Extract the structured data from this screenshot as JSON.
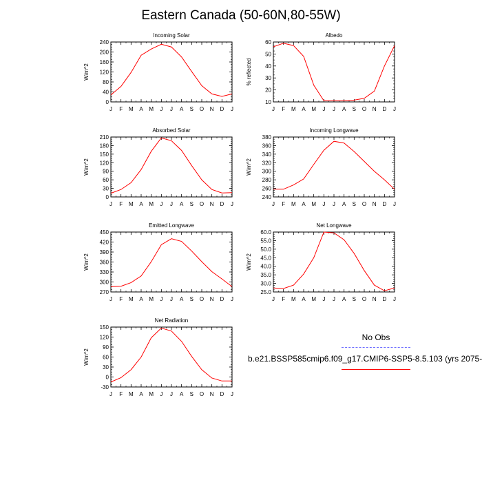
{
  "title": "Eastern Canada (50-60N,80-55W)",
  "months": [
    "J",
    "F",
    "M",
    "A",
    "M",
    "J",
    "J",
    "A",
    "S",
    "O",
    "N",
    "D",
    "J"
  ],
  "line_color": "#ff0000",
  "obs_color": "#6666ff",
  "legend": {
    "obs_label": "No Obs",
    "case_label": "b.e21.BSSP585cmip6.f09_g17.CMIP6-SSP5-8.5.103 (yrs 2075-"
  },
  "chart_data": [
    {
      "type": "line",
      "title": "Incoming Solar",
      "ylabel": "W/m^2",
      "ylim": [
        0,
        240
      ],
      "yticks": [
        0,
        40,
        80,
        120,
        160,
        200,
        240
      ],
      "values": [
        28,
        62,
        118,
        187,
        212,
        231,
        220,
        180,
        122,
        65,
        32,
        22,
        32
      ]
    },
    {
      "type": "line",
      "title": "Albedo",
      "ylabel": "% reflected",
      "ylim": [
        10,
        60
      ],
      "yticks": [
        10,
        20,
        30,
        40,
        50,
        60
      ],
      "values": [
        56,
        59,
        57,
        48,
        24,
        11,
        11,
        11,
        11.5,
        13,
        19,
        40,
        57
      ]
    },
    {
      "type": "line",
      "title": "Absorbed Solar",
      "ylabel": "W/m^2",
      "ylim": [
        0,
        210
      ],
      "yticks": [
        0,
        30,
        60,
        90,
        120,
        150,
        180,
        210
      ],
      "values": [
        13,
        26,
        50,
        96,
        160,
        207,
        197,
        163,
        110,
        60,
        26,
        14,
        15
      ]
    },
    {
      "type": "line",
      "title": "Incoming Longwave",
      "ylabel": "W/m^2",
      "ylim": [
        240,
        380
      ],
      "yticks": [
        240,
        260,
        280,
        300,
        320,
        340,
        360,
        380
      ],
      "values": [
        258,
        258,
        268,
        282,
        316,
        349,
        370,
        366,
        346,
        323,
        300,
        280,
        258
      ]
    },
    {
      "type": "line",
      "title": "Emitted Longwave",
      "ylabel": "W/m^2",
      "ylim": [
        270,
        450
      ],
      "yticks": [
        270,
        300,
        330,
        360,
        390,
        420,
        450
      ],
      "values": [
        286,
        287,
        298,
        318,
        361,
        412,
        430,
        422,
        393,
        361,
        331,
        309,
        286
      ]
    },
    {
      "type": "line",
      "title": "Net Longwave",
      "ylabel": "W/m^2",
      "ylim": [
        25,
        60
      ],
      "yticks": [
        25.0,
        30.0,
        35.0,
        40.0,
        45.0,
        50.0,
        55.0,
        60.0
      ],
      "values": [
        27.3,
        27.0,
        29.0,
        35.5,
        45.0,
        60.0,
        59.5,
        55.5,
        47.5,
        37.5,
        29.0,
        25.7,
        27.3
      ]
    },
    {
      "type": "line",
      "title": "Net Radiation",
      "ylabel": "W/m^2",
      "ylim": [
        -30,
        150
      ],
      "yticks": [
        -30,
        0,
        30,
        60,
        90,
        120,
        150
      ],
      "values": [
        -15,
        -2,
        22,
        60,
        118,
        147,
        138,
        107,
        62,
        22,
        -3,
        -12,
        -12
      ]
    }
  ]
}
